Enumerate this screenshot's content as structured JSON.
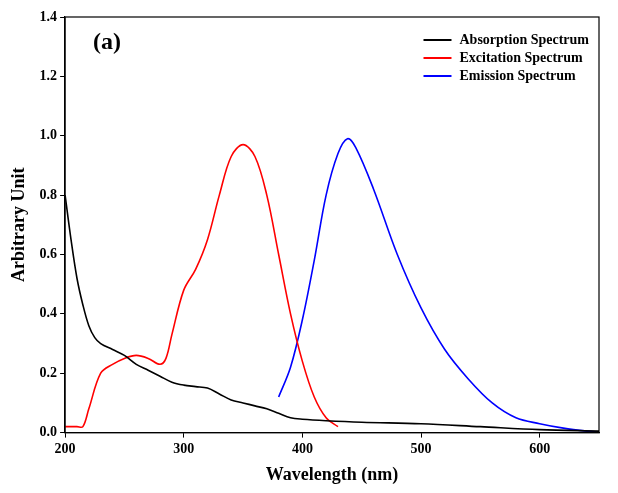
{
  "chart_data": {
    "type": "line",
    "annotations": [
      "(a)"
    ],
    "x_label": "Wavelength (nm)",
    "y_label": "Arbitrary Unit",
    "xlim": [
      200,
      650
    ],
    "xticks": [
      200,
      300,
      400,
      500,
      600
    ],
    "ylim": [
      0,
      1.4
    ],
    "yticks": [
      {
        "value": 0,
        "label": "0.0"
      },
      0.2,
      0.4,
      0.6,
      0.8,
      {
        "value": 1,
        "label": "1.0"
      },
      1.2,
      1.4
    ],
    "grid": false,
    "legend": "upper right",
    "series": [
      {
        "name": "Absorption Spectrum",
        "color": "#000000",
        "x": [
          200,
          205,
          210,
          215,
          220,
          225,
          230,
          240,
          250,
          260,
          270,
          280,
          290,
          300,
          310,
          320,
          330,
          340,
          350,
          360,
          370,
          380,
          390,
          400,
          420,
          450,
          500,
          550,
          600,
          650
        ],
        "values": [
          0.8,
          0.65,
          0.52,
          0.43,
          0.36,
          0.32,
          0.3,
          0.28,
          0.26,
          0.23,
          0.21,
          0.19,
          0.17,
          0.16,
          0.155,
          0.15,
          0.13,
          0.11,
          0.1,
          0.09,
          0.08,
          0.065,
          0.05,
          0.045,
          0.04,
          0.035,
          0.03,
          0.02,
          0.01,
          0.005
        ]
      },
      {
        "name": "Excitation Spectrum",
        "color": "#ff0000",
        "x": [
          200,
          210,
          215,
          220,
          230,
          240,
          250,
          260,
          270,
          280,
          285,
          290,
          300,
          310,
          320,
          330,
          340,
          350,
          360,
          370,
          380,
          390,
          400,
          410,
          420,
          430
        ],
        "values": [
          0.02,
          0.02,
          0.02,
          0.08,
          0.2,
          0.23,
          0.25,
          0.26,
          0.25,
          0.23,
          0.25,
          0.33,
          0.48,
          0.55,
          0.65,
          0.8,
          0.93,
          0.97,
          0.93,
          0.8,
          0.6,
          0.4,
          0.24,
          0.12,
          0.05,
          0.02
        ]
      },
      {
        "name": "Emission Spectrum",
        "color": "#0000ff",
        "x": [
          380,
          390,
          400,
          410,
          420,
          430,
          438,
          445,
          460,
          480,
          500,
          520,
          540,
          560,
          580,
          600,
          620,
          640,
          650
        ],
        "values": [
          0.12,
          0.22,
          0.38,
          0.58,
          0.8,
          0.94,
          0.99,
          0.96,
          0.82,
          0.6,
          0.42,
          0.28,
          0.18,
          0.1,
          0.05,
          0.03,
          0.015,
          0.005,
          0.002
        ]
      }
    ]
  }
}
